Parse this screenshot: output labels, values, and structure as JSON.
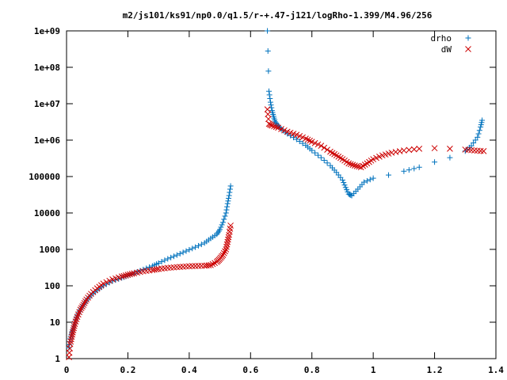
{
  "chart_data": {
    "type": "scatter",
    "title": "m2/js101/ks91/np0.0/q1.5/r-+.47-j121/logRho-1.399/M4.96/256",
    "xlabel": "",
    "ylabel": "",
    "xlim": [
      0,
      1.4
    ],
    "ylim": [
      1,
      1000000000
    ],
    "yscale": "log",
    "grid": false,
    "legend_position": "top-right",
    "x_ticks": [
      "0",
      "0.2",
      "0.4",
      "0.6",
      "0.8",
      "1",
      "1.2",
      "1.4"
    ],
    "y_ticks": [
      "1",
      "10",
      "100",
      "1000",
      "10000",
      "100000",
      "1e+06",
      "1e+07",
      "1e+08",
      "1e+09"
    ],
    "series": [
      {
        "name": "drho",
        "marker": "+",
        "color": "#0072bd",
        "points": [
          [
            0.008,
            2
          ],
          [
            0.012,
            3.5
          ],
          [
            0.017,
            5
          ],
          [
            0.022,
            7
          ],
          [
            0.027,
            10
          ],
          [
            0.035,
            15
          ],
          [
            0.045,
            22
          ],
          [
            0.055,
            30
          ],
          [
            0.065,
            40
          ],
          [
            0.08,
            55
          ],
          [
            0.1,
            75
          ],
          [
            0.12,
            100
          ],
          [
            0.15,
            135
          ],
          [
            0.18,
            165
          ],
          [
            0.2,
            190
          ],
          [
            0.22,
            220
          ],
          [
            0.25,
            280
          ],
          [
            0.28,
            350
          ],
          [
            0.3,
            420
          ],
          [
            0.33,
            550
          ],
          [
            0.36,
            700
          ],
          [
            0.39,
            900
          ],
          [
            0.42,
            1150
          ],
          [
            0.45,
            1500
          ],
          [
            0.47,
            2000
          ],
          [
            0.49,
            2600
          ],
          [
            0.5,
            3500
          ],
          [
            0.51,
            5500
          ],
          [
            0.52,
            10000
          ],
          [
            0.525,
            18000
          ],
          [
            0.53,
            30000
          ],
          [
            0.535,
            55000
          ],
          [
            0.655,
            1000000000
          ],
          [
            0.66,
            22000000
          ],
          [
            0.665,
            11000000
          ],
          [
            0.67,
            6500000
          ],
          [
            0.675,
            4500000
          ],
          [
            0.68,
            3200000
          ],
          [
            0.69,
            2500000
          ],
          [
            0.7,
            2000000
          ],
          [
            0.72,
            1500000
          ],
          [
            0.75,
            1050000
          ],
          [
            0.78,
            720000
          ],
          [
            0.8,
            520000
          ],
          [
            0.83,
            330000
          ],
          [
            0.86,
            200000
          ],
          [
            0.88,
            130000
          ],
          [
            0.9,
            80000
          ],
          [
            0.91,
            50000
          ],
          [
            0.92,
            33000
          ],
          [
            0.93,
            30000
          ],
          [
            0.95,
            45000
          ],
          [
            0.97,
            70000
          ],
          [
            1.0,
            90000
          ],
          [
            1.05,
            110000
          ],
          [
            1.1,
            140000
          ],
          [
            1.15,
            180000
          ],
          [
            1.2,
            250000
          ],
          [
            1.25,
            330000
          ],
          [
            1.3,
            500000
          ],
          [
            1.32,
            700000
          ],
          [
            1.34,
            1200000
          ],
          [
            1.35,
            2300000
          ],
          [
            1.355,
            3500000
          ]
        ]
      },
      {
        "name": "dW",
        "marker": "x",
        "color": "#cc0000",
        "points": [
          [
            0.008,
            1.1
          ],
          [
            0.012,
            2.5
          ],
          [
            0.017,
            4
          ],
          [
            0.022,
            6
          ],
          [
            0.027,
            9
          ],
          [
            0.035,
            14
          ],
          [
            0.045,
            22
          ],
          [
            0.055,
            30
          ],
          [
            0.065,
            42
          ],
          [
            0.08,
            60
          ],
          [
            0.1,
            85
          ],
          [
            0.12,
            115
          ],
          [
            0.15,
            150
          ],
          [
            0.18,
            180
          ],
          [
            0.2,
            200
          ],
          [
            0.22,
            220
          ],
          [
            0.25,
            250
          ],
          [
            0.28,
            270
          ],
          [
            0.3,
            290
          ],
          [
            0.33,
            310
          ],
          [
            0.36,
            325
          ],
          [
            0.39,
            340
          ],
          [
            0.42,
            350
          ],
          [
            0.45,
            355
          ],
          [
            0.47,
            370
          ],
          [
            0.49,
            450
          ],
          [
            0.5,
            550
          ],
          [
            0.51,
            700
          ],
          [
            0.52,
            1000
          ],
          [
            0.525,
            1600
          ],
          [
            0.53,
            2500
          ],
          [
            0.535,
            4500
          ],
          [
            0.655,
            7000000
          ],
          [
            0.66,
            2800000
          ],
          [
            0.67,
            2500000
          ],
          [
            0.69,
            2200000
          ],
          [
            0.72,
            1700000
          ],
          [
            0.75,
            1400000
          ],
          [
            0.78,
            1100000
          ],
          [
            0.8,
            900000
          ],
          [
            0.83,
            700000
          ],
          [
            0.86,
            480000
          ],
          [
            0.88,
            380000
          ],
          [
            0.9,
            300000
          ],
          [
            0.92,
            230000
          ],
          [
            0.94,
            200000
          ],
          [
            0.96,
            180000
          ],
          [
            0.98,
            230000
          ],
          [
            1.0,
            300000
          ],
          [
            1.03,
            380000
          ],
          [
            1.06,
            450000
          ],
          [
            1.1,
            520000
          ],
          [
            1.15,
            580000
          ],
          [
            1.2,
            600000
          ],
          [
            1.25,
            580000
          ],
          [
            1.3,
            550000
          ],
          [
            1.33,
            520000
          ],
          [
            1.36,
            500000
          ]
        ]
      }
    ]
  }
}
